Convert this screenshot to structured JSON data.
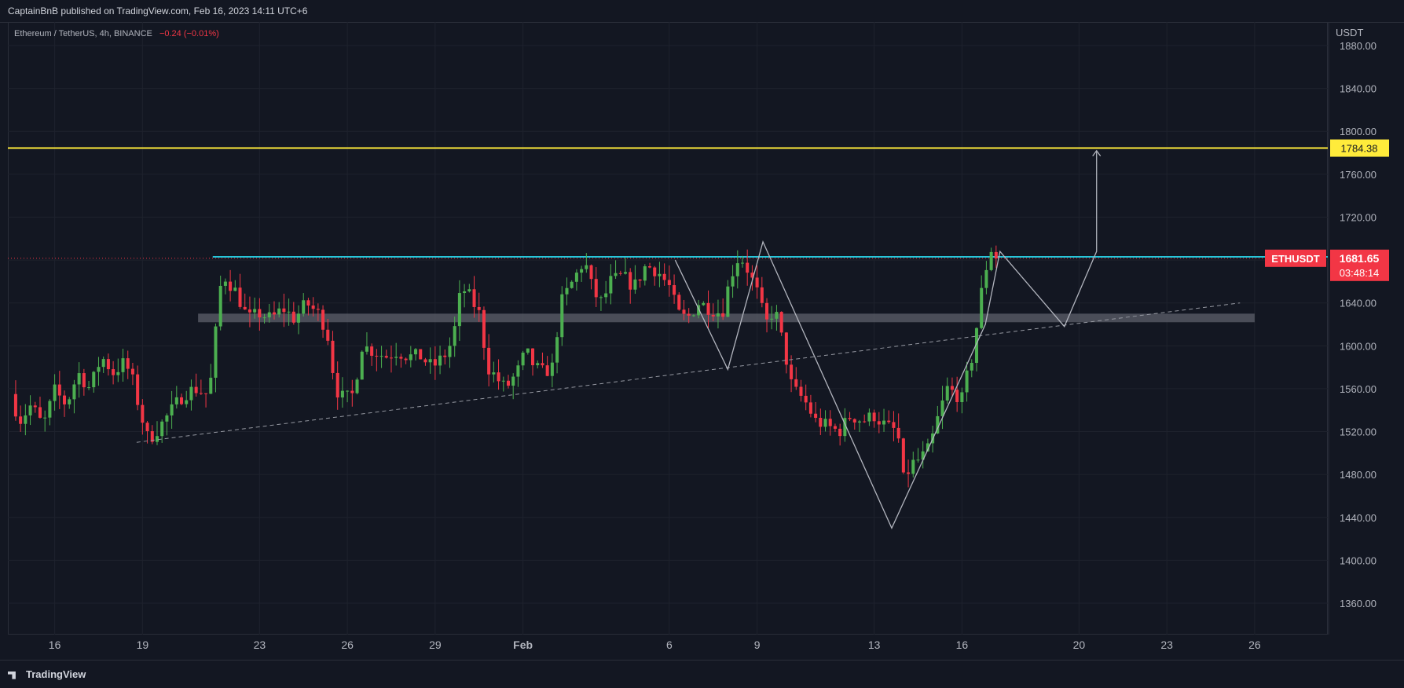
{
  "header": {
    "published": "CaptainBnB published on TradingView.com, Feb 16, 2023 14:11 UTC+6"
  },
  "footer": {
    "brand": "TradingView"
  },
  "chart_data": {
    "type": "candlestick",
    "symbol_line": "Ethereum / TetherUS, 4h, BINANCE",
    "change": "−0.24 (−0.01%)",
    "currency": "USDT",
    "ylim": [
      1360,
      1880
    ],
    "y_ticks": [
      1880,
      1840,
      1800,
      1760,
      1720,
      1680,
      1640,
      1600,
      1560,
      1520,
      1480,
      1440,
      1400,
      1360
    ],
    "y_tick_labels": [
      "1880.00",
      "1840.00",
      "1800.00",
      "1760.00",
      "1720.00",
      "1680.00",
      "1640.00",
      "1600.00",
      "1560.00",
      "1520.00",
      "1480.00",
      "1440.00",
      "1400.00",
      "1360.00"
    ],
    "x_ticks": [
      {
        "label": "16",
        "day": 0
      },
      {
        "label": "19",
        "day": 3
      },
      {
        "label": "23",
        "day": 7
      },
      {
        "label": "26",
        "day": 10
      },
      {
        "label": "29",
        "day": 13
      },
      {
        "label": "Feb",
        "day": 16
      },
      {
        "label": "6",
        "day": 21
      },
      {
        "label": "9",
        "day": 24
      },
      {
        "label": "13",
        "day": 28
      },
      {
        "label": "16",
        "day": 31
      },
      {
        "label": "20",
        "day": 35
      },
      {
        "label": "23",
        "day": 38
      },
      {
        "label": "26",
        "day": 41
      }
    ],
    "x_range_days": [
      -1.6,
      43.5
    ],
    "candle_hours": 4,
    "anchors": [
      [
        -1.5,
        1555
      ],
      [
        -1.2,
        1530
      ],
      [
        -0.8,
        1545
      ],
      [
        -0.4,
        1525
      ],
      [
        0,
        1558
      ],
      [
        0.4,
        1545
      ],
      [
        0.8,
        1575
      ],
      [
        1.2,
        1560
      ],
      [
        1.6,
        1590
      ],
      [
        2.0,
        1575
      ],
      [
        2.4,
        1585
      ],
      [
        2.7,
        1565
      ],
      [
        2.9,
        1540
      ],
      [
        3.2,
        1512
      ],
      [
        3.6,
        1525
      ],
      [
        4.0,
        1540
      ],
      [
        4.4,
        1555
      ],
      [
        4.8,
        1560
      ],
      [
        5.2,
        1555
      ],
      [
        5.4,
        1575
      ],
      [
        5.6,
        1650
      ],
      [
        5.8,
        1665
      ],
      [
        6.2,
        1650
      ],
      [
        6.6,
        1625
      ],
      [
        7.0,
        1630
      ],
      [
        7.4,
        1625
      ],
      [
        7.8,
        1635
      ],
      [
        8.2,
        1625
      ],
      [
        8.6,
        1640
      ],
      [
        9.0,
        1630
      ],
      [
        9.3,
        1615
      ],
      [
        9.6,
        1560
      ],
      [
        9.9,
        1550
      ],
      [
        10.2,
        1555
      ],
      [
        10.5,
        1600
      ],
      [
        10.9,
        1595
      ],
      [
        11.3,
        1590
      ],
      [
        11.7,
        1595
      ],
      [
        12.1,
        1590
      ],
      [
        12.5,
        1590
      ],
      [
        12.9,
        1580
      ],
      [
        13.3,
        1590
      ],
      [
        13.6,
        1605
      ],
      [
        13.9,
        1655
      ],
      [
        14.2,
        1645
      ],
      [
        14.5,
        1630
      ],
      [
        14.8,
        1580
      ],
      [
        15.1,
        1570
      ],
      [
        15.4,
        1560
      ],
      [
        15.8,
        1575
      ],
      [
        16.1,
        1595
      ],
      [
        16.4,
        1580
      ],
      [
        16.7,
        1575
      ],
      [
        17.0,
        1580
      ],
      [
        17.3,
        1640
      ],
      [
        17.6,
        1655
      ],
      [
        17.9,
        1670
      ],
      [
        18.1,
        1680
      ],
      [
        18.4,
        1650
      ],
      [
        18.7,
        1640
      ],
      [
        19.0,
        1660
      ],
      [
        19.4,
        1665
      ],
      [
        19.8,
        1655
      ],
      [
        20.2,
        1675
      ],
      [
        20.6,
        1670
      ],
      [
        21.0,
        1655
      ],
      [
        21.3,
        1630
      ],
      [
        21.6,
        1625
      ],
      [
        22.0,
        1640
      ],
      [
        22.4,
        1635
      ],
      [
        22.8,
        1630
      ],
      [
        23.1,
        1665
      ],
      [
        23.4,
        1685
      ],
      [
        23.7,
        1670
      ],
      [
        24.0,
        1650
      ],
      [
        24.3,
        1620
      ],
      [
        24.6,
        1635
      ],
      [
        24.9,
        1600
      ],
      [
        25.2,
        1560
      ],
      [
        25.6,
        1550
      ],
      [
        26.0,
        1530
      ],
      [
        26.4,
        1525
      ],
      [
        26.8,
        1520
      ],
      [
        27.2,
        1535
      ],
      [
        27.6,
        1530
      ],
      [
        28.0,
        1535
      ],
      [
        28.4,
        1525
      ],
      [
        28.8,
        1520
      ],
      [
        29.0,
        1475
      ],
      [
        29.3,
        1490
      ],
      [
        29.6,
        1495
      ],
      [
        29.9,
        1505
      ],
      [
        30.2,
        1535
      ],
      [
        30.5,
        1560
      ],
      [
        30.8,
        1555
      ],
      [
        31.0,
        1550
      ],
      [
        31.2,
        1575
      ],
      [
        31.4,
        1595
      ],
      [
        31.6,
        1640
      ],
      [
        31.8,
        1670
      ],
      [
        32.0,
        1690
      ],
      [
        32.2,
        1682
      ]
    ],
    "levels": [
      {
        "price": 1784.38,
        "label": "1784.38",
        "color": "#ffeb3b",
        "from_day": -1.6,
        "to_day": 43.5
      },
      {
        "price": 1683,
        "color": "#26c6da",
        "from_day": 5.4,
        "to_day": 43.5
      }
    ],
    "zone": {
      "from_price": 1622,
      "to_price": 1630,
      "from_day": 4.9,
      "to_day": 41.0,
      "color": "#5d606b"
    },
    "trendline": {
      "points": [
        [
          2.8,
          1510
        ],
        [
          40.5,
          1640
        ]
      ],
      "color": "#9598a1"
    },
    "pattern_lines": [
      {
        "points": [
          [
            21.2,
            1680
          ],
          [
            23.0,
            1578
          ],
          [
            24.2,
            1697
          ],
          [
            28.6,
            1430
          ],
          [
            31.8,
            1620
          ],
          [
            32.3,
            1688
          ],
          [
            34.5,
            1618
          ],
          [
            35.6,
            1688
          ],
          [
            35.6,
            1782
          ]
        ],
        "color": "#b2b5be"
      }
    ],
    "last_price": {
      "symbol": "ETHUSDT",
      "price": "1681.65",
      "countdown": "03:48:14",
      "value": 1681.65,
      "color": "#f23645"
    },
    "colors": {
      "up": "#4caf50",
      "down": "#f23645",
      "background": "#131722",
      "text": "#b2b5be"
    }
  }
}
